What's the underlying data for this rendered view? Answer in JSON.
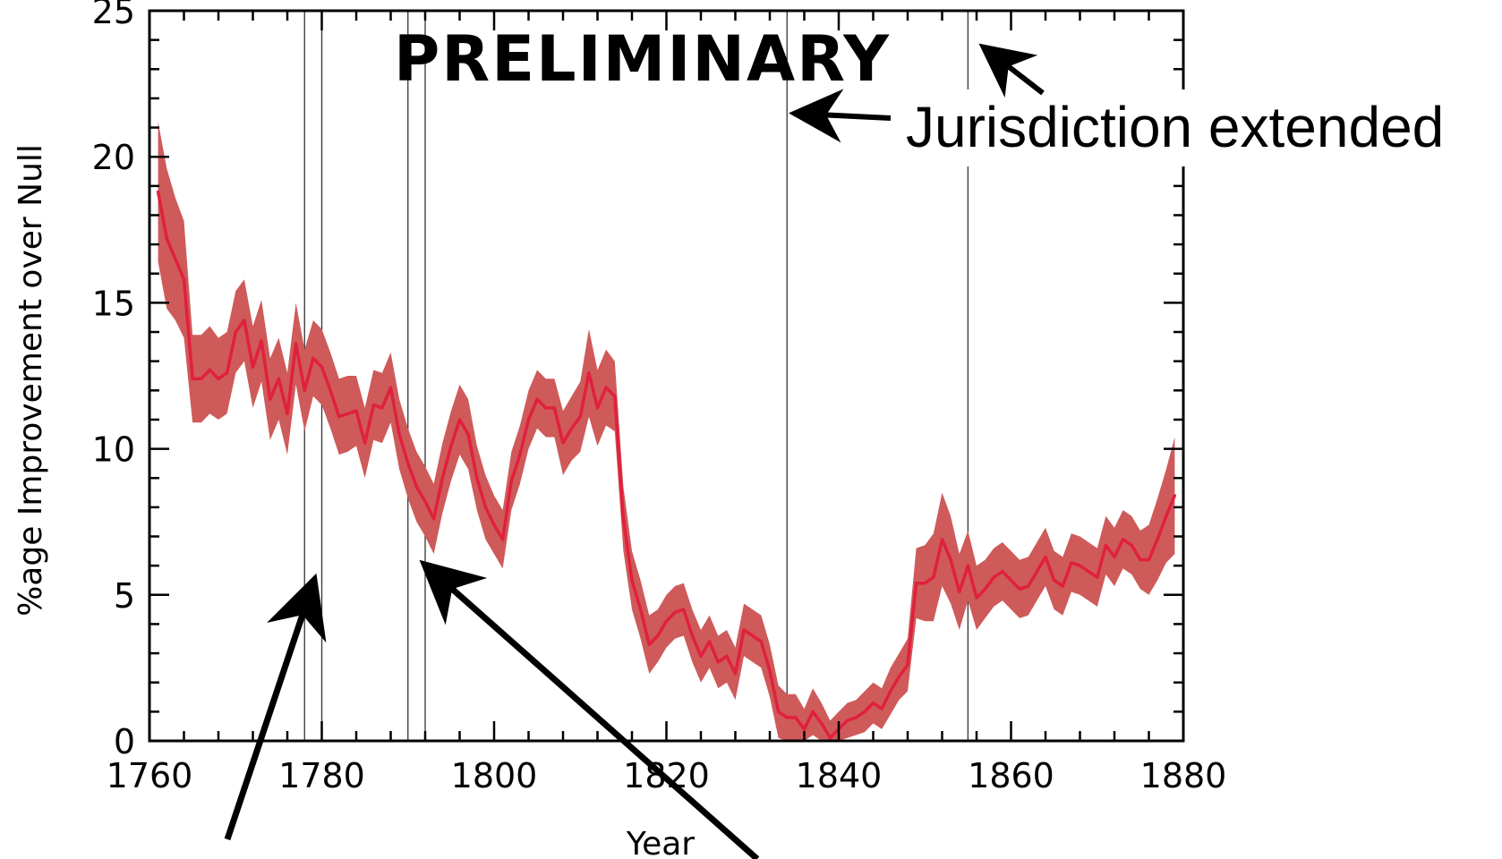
{
  "chart_data": {
    "type": "line",
    "title": "PRELIMINARY",
    "xlabel": "Year",
    "ylabel": "%age Improvement over Null",
    "xlim": [
      1760,
      1880
    ],
    "ylim": [
      0,
      25
    ],
    "x_ticks": [
      1760,
      1780,
      1800,
      1820,
      1840,
      1860,
      1880
    ],
    "y_ticks": [
      0,
      5,
      10,
      15,
      20,
      25
    ],
    "grid": false,
    "line_color": "#e0203c",
    "band_color": "#cf5a5a",
    "series": [
      {
        "x": [
          1761,
          1762,
          1763,
          1764,
          1765,
          1766,
          1767,
          1768,
          1769,
          1770,
          1771,
          1772,
          1773,
          1774,
          1775,
          1776,
          1777,
          1778,
          1779,
          1780,
          1781,
          1782,
          1783,
          1784,
          1785,
          1786,
          1787,
          1788,
          1789,
          1790,
          1791,
          1792,
          1793,
          1794,
          1795,
          1796,
          1797,
          1798,
          1799,
          1800,
          1801,
          1802,
          1803,
          1804,
          1805,
          1806,
          1807,
          1808,
          1809,
          1810,
          1811,
          1812,
          1813,
          1814,
          1815,
          1816,
          1817,
          1818,
          1819,
          1820,
          1821,
          1822,
          1823,
          1824,
          1825,
          1826,
          1827,
          1828,
          1829,
          1830,
          1831,
          1832,
          1833,
          1834,
          1835,
          1836,
          1837,
          1838,
          1839,
          1840,
          1841,
          1842,
          1843,
          1844,
          1845,
          1846,
          1847,
          1848,
          1849,
          1850,
          1851,
          1852,
          1853,
          1854,
          1855,
          1856,
          1857,
          1858,
          1859,
          1860,
          1861,
          1862,
          1863,
          1864,
          1865,
          1866,
          1867,
          1868,
          1869,
          1870,
          1871,
          1872,
          1873,
          1874,
          1875,
          1876,
          1877,
          1878,
          1879
        ],
        "y": [
          18.8,
          17.2,
          16.5,
          15.8,
          12.4,
          12.4,
          12.7,
          12.4,
          12.6,
          14.0,
          14.4,
          12.8,
          13.7,
          11.7,
          12.4,
          11.2,
          13.6,
          12.0,
          13.1,
          12.8,
          12.0,
          11.1,
          11.2,
          11.3,
          10.2,
          11.5,
          11.4,
          12.1,
          10.5,
          9.5,
          8.7,
          8.2,
          7.6,
          9.0,
          10.1,
          11.0,
          10.5,
          9.0,
          8.0,
          7.4,
          6.9,
          8.9,
          9.8,
          11.0,
          11.7,
          11.4,
          11.4,
          10.2,
          10.7,
          11.1,
          12.6,
          11.4,
          12.1,
          11.8,
          7.6,
          5.5,
          4.5,
          3.3,
          3.6,
          4.1,
          4.4,
          4.5,
          3.6,
          2.9,
          3.4,
          2.7,
          2.9,
          2.3,
          3.8,
          3.6,
          3.4,
          2.4,
          1.0,
          0.8,
          0.8,
          0.4,
          1.0,
          0.6,
          0.1,
          0.4,
          0.7,
          0.8,
          1.0,
          1.3,
          1.1,
          1.7,
          2.2,
          2.6,
          5.4,
          5.4,
          5.6,
          6.9,
          6.2,
          5.1,
          6.0,
          4.9,
          5.2,
          5.6,
          5.8,
          5.5,
          5.2,
          5.3,
          5.8,
          6.3,
          5.5,
          5.3,
          6.1,
          6.0,
          5.8,
          5.6,
          6.7,
          6.3,
          6.9,
          6.7,
          6.2,
          6.2,
          6.9,
          7.7,
          8.4
        ],
        "band_halfwidth": [
          2.4,
          2.4,
          2.1,
          2.0,
          1.5,
          1.5,
          1.5,
          1.4,
          1.4,
          1.4,
          1.4,
          1.4,
          1.4,
          1.4,
          1.4,
          1.4,
          1.4,
          1.4,
          1.3,
          1.3,
          1.3,
          1.3,
          1.3,
          1.2,
          1.2,
          1.2,
          1.2,
          1.2,
          1.2,
          1.2,
          1.2,
          1.2,
          1.2,
          1.2,
          1.2,
          1.2,
          1.2,
          1.1,
          1.1,
          1.0,
          1.0,
          1.0,
          1.0,
          1.0,
          1.0,
          1.0,
          1.0,
          1.1,
          1.1,
          1.2,
          1.5,
          1.3,
          1.3,
          1.2,
          1.1,
          1.0,
          1.0,
          1.0,
          0.9,
          0.9,
          0.9,
          0.9,
          0.9,
          0.9,
          0.9,
          0.9,
          0.9,
          0.9,
          0.9,
          0.9,
          0.9,
          0.9,
          0.9,
          0.8,
          0.8,
          0.7,
          0.8,
          0.7,
          0.6,
          0.6,
          0.6,
          0.6,
          0.7,
          0.7,
          0.7,
          0.8,
          0.8,
          0.9,
          1.2,
          1.3,
          1.5,
          1.6,
          1.5,
          1.3,
          1.2,
          1.1,
          1.0,
          1.0,
          1.0,
          1.0,
          1.0,
          1.0,
          1.0,
          1.0,
          1.0,
          1.0,
          1.0,
          1.0,
          1.0,
          1.0,
          1.0,
          1.0,
          1.0,
          1.0,
          1.0,
          1.2,
          1.4,
          1.6,
          2.0
        ]
      }
    ],
    "vertical_markers": [
      1778,
      1780,
      1790,
      1792,
      1834,
      1855
    ],
    "annotations": [
      {
        "text": "Jurisdiction extended"
      }
    ]
  }
}
